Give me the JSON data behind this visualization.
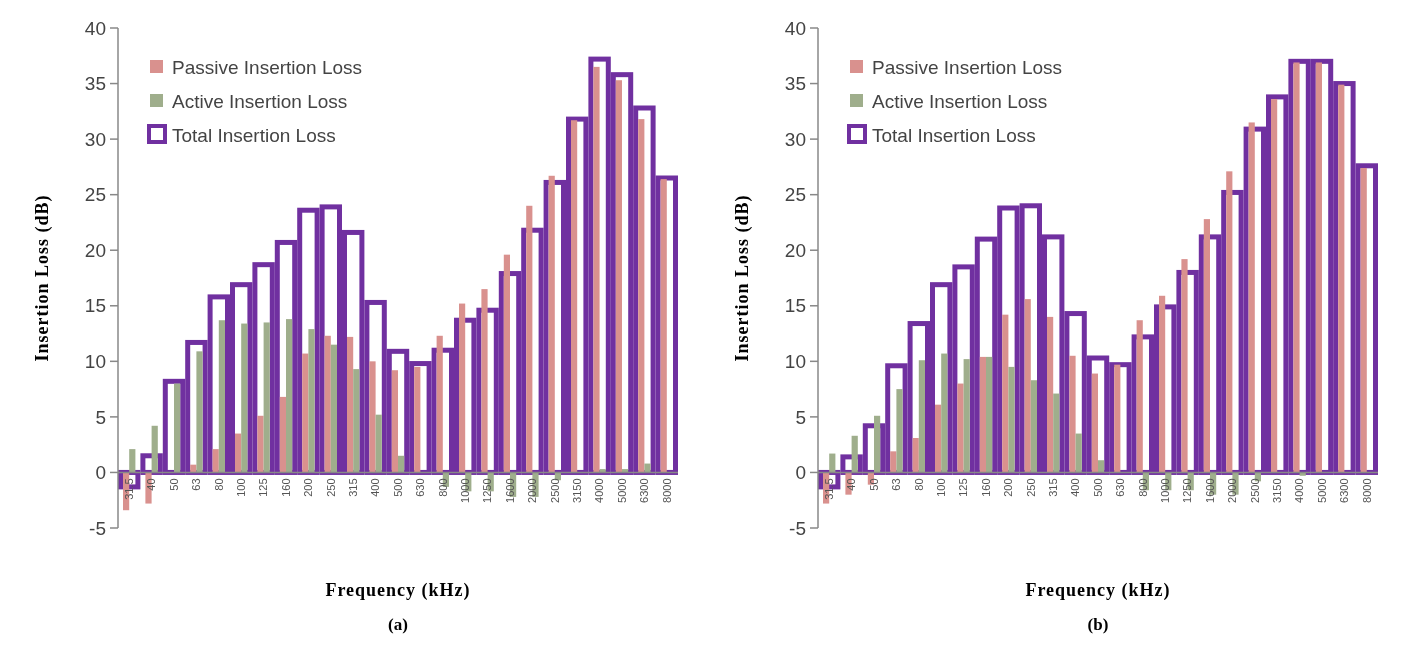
{
  "chart_data": [
    {
      "type": "bar",
      "xlabel": "Frequency (kHz)",
      "ylabel": "Insertion Loss (dB)",
      "annotations": [
        "(a)"
      ],
      "categories": [
        "31.5",
        "40",
        "50",
        "63",
        "80",
        "100",
        "125",
        "160",
        "200",
        "250",
        "315",
        "400",
        "500",
        "630",
        "800",
        "1000",
        "1250",
        "1600",
        "2000",
        "2500",
        "3150",
        "4000",
        "5000",
        "6300",
        "8000"
      ],
      "series": [
        {
          "name": "Passive Insertion Loss",
          "color": "#d9918e",
          "values": [
            -3.4,
            -2.8,
            0,
            0.7,
            2.1,
            3.5,
            5.1,
            6.8,
            10.7,
            12.3,
            12.2,
            10.0,
            9.2,
            9.5,
            12.3,
            15.2,
            16.5,
            19.6,
            24.0,
            26.7,
            31.7,
            36.5,
            35.3,
            31.8,
            26.4
          ]
        },
        {
          "name": "Active Insertion Loss",
          "color": "#9fae8c",
          "values": [
            2.1,
            4.2,
            8.0,
            10.9,
            13.7,
            13.4,
            13.5,
            13.8,
            12.9,
            11.5,
            9.3,
            5.2,
            1.5,
            0,
            -1.3,
            -1.7,
            -1.7,
            -2.2,
            -2.2,
            -0.7,
            0,
            0.3,
            0.3,
            0.8,
            0
          ]
        },
        {
          "name": "Total Insertion Loss",
          "color": "#7030a0",
          "line_style": "solid",
          "values": [
            -1.3,
            1.5,
            8.2,
            11.7,
            15.8,
            16.9,
            18.7,
            20.7,
            23.6,
            23.9,
            21.6,
            15.3,
            10.9,
            9.8,
            11.0,
            13.7,
            14.6,
            17.9,
            21.8,
            26.1,
            31.8,
            37.2,
            35.8,
            32.8,
            26.5
          ]
        }
      ],
      "ylim": [
        -5,
        40
      ],
      "yticks": [
        -5,
        0,
        5,
        10,
        15,
        20,
        25,
        30,
        35,
        40
      ],
      "grid": false,
      "legend": "top left"
    },
    {
      "type": "bar",
      "xlabel": "Frequency (kHz)",
      "ylabel": "Insertion Loss (dB)",
      "annotations": [
        "(b)"
      ],
      "categories": [
        "31.5",
        "40",
        "50",
        "63",
        "80",
        "100",
        "125",
        "160",
        "200",
        "250",
        "315",
        "400",
        "500",
        "630",
        "800",
        "1000",
        "1250",
        "1600",
        "2000",
        "2500",
        "3150",
        "4000",
        "5000",
        "6300",
        "8000"
      ],
      "series": [
        {
          "name": "Passive Insertion Loss",
          "color": "#d9918e",
          "values": [
            -2.8,
            -2.0,
            -1.1,
            1.9,
            3.1,
            6.1,
            8.0,
            10.4,
            14.2,
            15.6,
            14.0,
            10.5,
            8.9,
            9.7,
            13.7,
            15.9,
            19.2,
            22.8,
            27.1,
            31.5,
            33.6,
            36.9,
            36.9,
            34.9,
            27.4
          ]
        },
        {
          "name": "Active Insertion Loss",
          "color": "#9fae8c",
          "values": [
            1.7,
            3.3,
            5.1,
            7.5,
            10.1,
            10.7,
            10.2,
            10.4,
            9.5,
            8.3,
            7.1,
            3.5,
            1.1,
            0,
            -1.6,
            -1.6,
            -1.6,
            -2.0,
            -2.0,
            -0.8,
            0,
            -0.3,
            0,
            0,
            0
          ]
        },
        {
          "name": "Total Insertion Loss",
          "color": "#7030a0",
          "line_style": "solid",
          "values": [
            -1.3,
            1.4,
            4.2,
            9.6,
            13.4,
            16.9,
            18.5,
            21.0,
            23.8,
            24.0,
            21.2,
            14.3,
            10.3,
            9.7,
            12.2,
            14.9,
            18.0,
            21.2,
            25.2,
            30.9,
            33.8,
            37.0,
            37.0,
            35.0,
            27.6
          ]
        }
      ],
      "ylim": [
        -5,
        40
      ],
      "yticks": [
        -5,
        0,
        5,
        10,
        15,
        20,
        25,
        30,
        35,
        40
      ],
      "grid": false,
      "legend": "top left"
    }
  ]
}
